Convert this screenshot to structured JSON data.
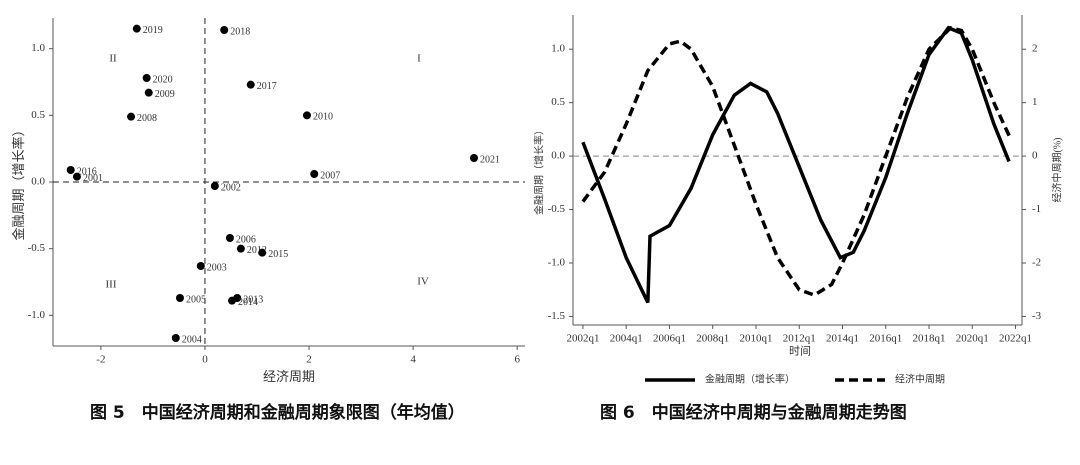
{
  "chart_data": [
    {
      "type": "scatter",
      "x_label": "经济周期",
      "y_label": "金融周期（增长率）",
      "labels": [
        "2019",
        "2018",
        "2020",
        "2009",
        "2008",
        "2017",
        "2010",
        "2021",
        "2016",
        "2001",
        "2007",
        "2002",
        "2006",
        "2012",
        "2015",
        "2003",
        "2005",
        "2013",
        "2014",
        "2004"
      ],
      "x": [
        -1.31,
        0.37,
        -1.12,
        -1.08,
        -1.42,
        0.88,
        1.96,
        5.17,
        -2.58,
        -2.46,
        2.1,
        0.19,
        0.48,
        0.69,
        1.1,
        -0.08,
        -0.48,
        0.62,
        0.52,
        -0.56
      ],
      "values": [
        1.15,
        1.14,
        0.78,
        0.67,
        0.49,
        0.73,
        0.5,
        0.18,
        0.09,
        0.04,
        0.06,
        -0.03,
        -0.42,
        -0.5,
        -0.53,
        -0.63,
        -0.87,
        -0.87,
        -0.89,
        -1.17
      ],
      "color": "#000000",
      "xlim": [
        -2.92,
        6.15
      ],
      "xticks": [
        -2,
        0,
        2,
        4,
        6
      ],
      "ylim": [
        -1.23,
        1.23
      ],
      "yticks": [
        {
          "value": -1,
          "label": "-1.0"
        },
        {
          "value": -0.5,
          "label": "-0.5"
        },
        {
          "value": 0,
          "label": "0.0"
        },
        {
          "value": 0.5,
          "label": "0.5"
        },
        {
          "value": 1,
          "label": "1.0"
        }
      ],
      "hlines": [
        0
      ],
      "vlines": [
        0
      ],
      "annotations": [
        "I",
        "II",
        "III",
        "IV"
      ]
    },
    {
      "type": "line",
      "x_label": "时间",
      "y_label": "金融周期（增长率）",
      "y2_label": "经济中周期(%)",
      "series": [
        {
          "name": "金融周期（增长率）",
          "color": "#000000",
          "dash": false,
          "x": [
            2002,
            2003,
            2004,
            2005,
            2005.1,
            2006,
            2007,
            2008,
            2009,
            2009.75,
            2010.5,
            2011,
            2012,
            2013,
            2013.9,
            2014.5,
            2015,
            2016,
            2017,
            2018,
            2018.9,
            2019.5,
            2020,
            2021,
            2021.7
          ],
          "values": [
            0.13,
            -0.4,
            -0.95,
            -1.37,
            -0.75,
            -0.65,
            -0.3,
            0.2,
            0.57,
            0.68,
            0.6,
            0.4,
            -0.1,
            -0.6,
            -0.95,
            -0.9,
            -0.7,
            -0.2,
            0.4,
            0.95,
            1.2,
            1.15,
            0.9,
            0.3,
            -0.05
          ]
        },
        {
          "name": "经济中周期",
          "color": "#000000",
          "dash": true,
          "axis": "y2",
          "x": [
            2002,
            2003,
            2004,
            2005,
            2006,
            2006.5,
            2007,
            2008,
            2009,
            2010,
            2011,
            2012,
            2012.7,
            2013.5,
            2014,
            2015,
            2016,
            2017,
            2018,
            2019,
            2019.5,
            2020,
            2021,
            2021.8
          ],
          "values": [
            -0.85,
            -0.3,
            0.6,
            1.6,
            2.1,
            2.15,
            2.0,
            1.3,
            0.2,
            -0.9,
            -1.9,
            -2.5,
            -2.6,
            -2.4,
            -2.0,
            -1.1,
            0.0,
            1.1,
            2.0,
            2.4,
            2.35,
            2.0,
            1.0,
            0.3
          ]
        }
      ],
      "xlim": [
        2001.54,
        2022.3
      ],
      "xticks": [
        {
          "value": 2002,
          "label": "2002q1"
        },
        {
          "value": 2004,
          "label": "2004q1"
        },
        {
          "value": 2006,
          "label": "2006q1"
        },
        {
          "value": 2008,
          "label": "2008q1"
        },
        {
          "value": 2010,
          "label": "2010q1"
        },
        {
          "value": 2012,
          "label": "2012q1"
        },
        {
          "value": 2014,
          "label": "2014q1"
        },
        {
          "value": 2016,
          "label": "2016q1"
        },
        {
          "value": 2018,
          "label": "2018q1"
        },
        {
          "value": 2020,
          "label": "2020q1"
        },
        {
          "value": 2022,
          "label": "2022q1"
        }
      ],
      "ylim": [
        -1.58,
        1.32
      ],
      "yticks": [
        {
          "value": -1.5,
          "label": "-1.5"
        },
        {
          "value": -1,
          "label": "-1.0"
        },
        {
          "value": -0.5,
          "label": "-0.5"
        },
        {
          "value": 0,
          "label": "0.0"
        },
        {
          "value": 0.5,
          "label": "0.5"
        },
        {
          "value": 1,
          "label": "1.0"
        }
      ],
      "y2lim": [
        -3.16,
        2.64
      ],
      "y2ticks": [
        -3,
        -2,
        -1,
        0,
        1,
        2
      ],
      "hlines": [
        0
      ]
    }
  ],
  "captions": [
    "图 5　中国经济周期和金融周期象限图（年均值）",
    "图 6　中国经济中周期与金融周期走势图"
  ]
}
